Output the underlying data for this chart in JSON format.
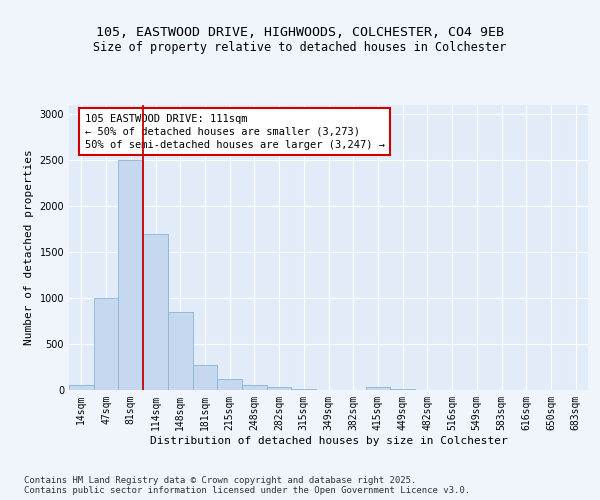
{
  "title_line1": "105, EASTWOOD DRIVE, HIGHWOODS, COLCHESTER, CO4 9EB",
  "title_line2": "Size of property relative to detached houses in Colchester",
  "xlabel": "Distribution of detached houses by size in Colchester",
  "ylabel": "Number of detached properties",
  "footnote": "Contains HM Land Registry data © Crown copyright and database right 2025.\nContains public sector information licensed under the Open Government Licence v3.0.",
  "bin_labels": [
    "14sqm",
    "47sqm",
    "81sqm",
    "114sqm",
    "148sqm",
    "181sqm",
    "215sqm",
    "248sqm",
    "282sqm",
    "315sqm",
    "349sqm",
    "382sqm",
    "415sqm",
    "449sqm",
    "482sqm",
    "516sqm",
    "549sqm",
    "583sqm",
    "616sqm",
    "650sqm",
    "683sqm"
  ],
  "bar_values": [
    50,
    1000,
    2500,
    1700,
    850,
    270,
    115,
    50,
    30,
    10,
    0,
    0,
    30,
    15,
    0,
    0,
    0,
    0,
    0,
    0,
    0
  ],
  "bar_color": "#c5d8f0",
  "bar_edge_color": "#8ab4d8",
  "vline_pos": 2.5,
  "vline_color": "#cc0000",
  "vline_label_title": "105 EASTWOOD DRIVE: 111sqm",
  "vline_label_line2": "← 50% of detached houses are smaller (3,273)",
  "vline_label_line3": "50% of semi-detached houses are larger (3,247) →",
  "annotation_box_color": "#cc0000",
  "ylim": [
    0,
    3100
  ],
  "yticks": [
    0,
    500,
    1000,
    1500,
    2000,
    2500,
    3000
  ],
  "bg_color": "#f0f4fb",
  "plot_bg_color": "#e2ecf8",
  "grid_color": "#ffffff",
  "title_fontsize": 9.5,
  "subtitle_fontsize": 8.5,
  "axis_label_fontsize": 8,
  "tick_fontsize": 7,
  "annot_fontsize": 7.5,
  "footnote_fontsize": 6.5
}
